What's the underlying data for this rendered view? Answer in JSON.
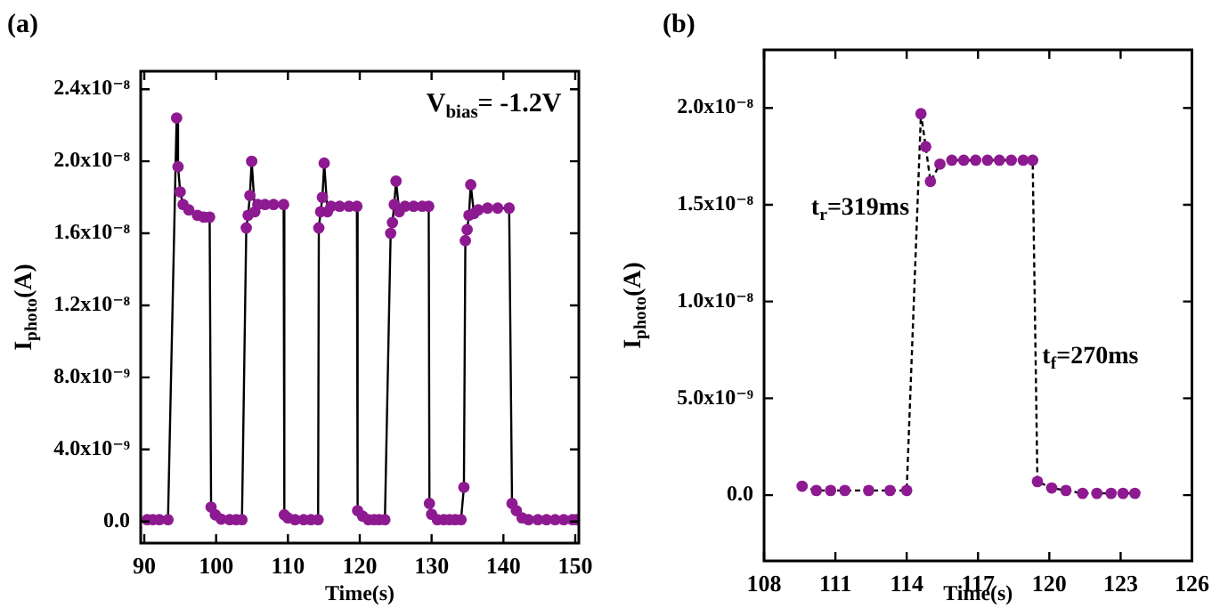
{
  "chart_data": [
    {
      "type": "line",
      "title": "(a)",
      "xlabel": "Time(s)",
      "ylabel": "I$_{photo}$(A)",
      "x": [
        90.4,
        91.2,
        92.1,
        93.3,
        94.5,
        94.7,
        95.0,
        95.4,
        96.2,
        97.4,
        98.3,
        99.1,
        99.3,
        99.9,
        100.7,
        101.9,
        102.8,
        103.6,
        104.2,
        104.45,
        104.7,
        104.95,
        105.4,
        105.8,
        106.8,
        108,
        109.4,
        109.5,
        110,
        111,
        112.2,
        113.2,
        114.2,
        114.3,
        114.55,
        114.8,
        115.05,
        115.5,
        116,
        117.2,
        118.5,
        119.6,
        119.7,
        120.4,
        121.2,
        122,
        122.7,
        123.5,
        124.3,
        124.55,
        124.8,
        125.05,
        125.5,
        126.3,
        127.5,
        128.7,
        129.6,
        129.7,
        130.0,
        130.8,
        131.7,
        132.5,
        133.3,
        134.1,
        134.5,
        134.7,
        134.95,
        135.2,
        135.45,
        135.9,
        136.5,
        137.8,
        139.2,
        140.8,
        141.2,
        141.8,
        142.6,
        143.5,
        144.8,
        146,
        147.2,
        148.4,
        149.6,
        150.2
      ],
      "series": [
        {
          "color": "#8e1a91",
          "values": [
            1e-10,
            1e-10,
            1e-10,
            1e-10,
            2.24e-08,
            1.97e-08,
            1.83e-08,
            1.76e-08,
            1.73e-08,
            1.7e-08,
            1.69e-08,
            1.69e-08,
            8e-10,
            3.7e-10,
            1.3e-10,
            1e-10,
            1e-10,
            1e-10,
            1.63e-08,
            1.7e-08,
            1.81e-08,
            2e-08,
            1.72e-08,
            1.76e-08,
            1.76e-08,
            1.76e-08,
            1.76e-08,
            3.7e-10,
            2e-10,
            1e-10,
            1e-10,
            1e-10,
            1e-10,
            1.63e-08,
            1.72e-08,
            1.8e-08,
            1.99e-08,
            1.72e-08,
            1.75e-08,
            1.75e-08,
            1.75e-08,
            1.75e-08,
            6e-10,
            3e-10,
            1e-10,
            1e-10,
            1e-10,
            1e-10,
            1.6e-08,
            1.66e-08,
            1.76e-08,
            1.89e-08,
            1.72e-08,
            1.75e-08,
            1.75e-08,
            1.75e-08,
            1.75e-08,
            1e-09,
            4e-10,
            1e-10,
            1e-10,
            1e-10,
            1e-10,
            1e-10,
            1.9e-09,
            1.56e-08,
            1.62e-08,
            1.7e-08,
            1.87e-08,
            1.71e-08,
            1.73e-08,
            1.74e-08,
            1.74e-08,
            1.74e-08,
            1e-09,
            6e-10,
            2e-10,
            1e-10,
            1e-10,
            1e-10,
            1e-10,
            1e-10,
            1e-10,
            1e-10
          ]
        }
      ],
      "xlim": [
        89.5,
        150.5
      ],
      "ylim": [
        -1.2e-09,
        2.5e-08
      ],
      "xticks": [
        90,
        100,
        110,
        120,
        130,
        140,
        150
      ],
      "yticks": [
        {
          "value": 0,
          "label": "0.0"
        },
        {
          "value": 4e-09,
          "label": "4.0x10⁻⁹"
        },
        {
          "value": 8e-09,
          "label": "8.0x10⁻⁹"
        },
        {
          "value": 1.2e-08,
          "label": "1.2x10⁻⁸"
        },
        {
          "value": 1.6e-08,
          "label": "1.6x10⁻⁸"
        },
        {
          "value": 2e-08,
          "label": "2.0x10⁻⁸"
        },
        {
          "value": 2.4e-08,
          "label": "2.4x10⁻⁸"
        }
      ],
      "marker": "circle",
      "line_style": "solid",
      "annotations": [
        "V$_{bias}$= -1.2V"
      ]
    },
    {
      "type": "line",
      "title": "(b)",
      "xlabel": "Time(s)",
      "ylabel": "I$_{photo}$(A)",
      "x": [
        109.6,
        110.2,
        110.8,
        111.4,
        112.4,
        113.3,
        114.0,
        114.6,
        114.8,
        115.0,
        115.4,
        115.9,
        116.4,
        116.9,
        117.4,
        117.9,
        118.4,
        118.9,
        119.3,
        119.5,
        120.1,
        120.7,
        121.4,
        122.0,
        122.6,
        123.1,
        123.6
      ],
      "series": [
        {
          "color": "#8e1a91",
          "values": [
            4.6e-10,
            2.4e-10,
            2.4e-10,
            2.4e-10,
            2.4e-10,
            2.4e-10,
            2.4e-10,
            1.97e-08,
            1.8e-08,
            1.62e-08,
            1.71e-08,
            1.73e-08,
            1.73e-08,
            1.73e-08,
            1.73e-08,
            1.73e-08,
            1.73e-08,
            1.73e-08,
            1.73e-08,
            7e-10,
            3.7e-10,
            2.4e-10,
            9e-11,
            9e-11,
            9e-11,
            9e-11,
            9e-11
          ]
        }
      ],
      "xlim": [
        108,
        126
      ],
      "ylim": [
        -3.4e-09,
        2.3e-08
      ],
      "xticks": [
        108,
        111,
        114,
        117,
        120,
        123,
        126
      ],
      "yticks": [
        {
          "value": 0,
          "label": "0.0"
        },
        {
          "value": 5e-09,
          "label": "5.0x10⁻⁹"
        },
        {
          "value": 1e-08,
          "label": "1.0x10⁻⁸"
        },
        {
          "value": 1.5e-08,
          "label": "1.5x10⁻⁸"
        },
        {
          "value": 2e-08,
          "label": "2.0x10⁻⁸"
        }
      ],
      "marker": "circle",
      "line_style": "dashed",
      "annotations": [
        "t$_{r}$=319ms",
        "t$_{f}$=270ms"
      ]
    }
  ]
}
